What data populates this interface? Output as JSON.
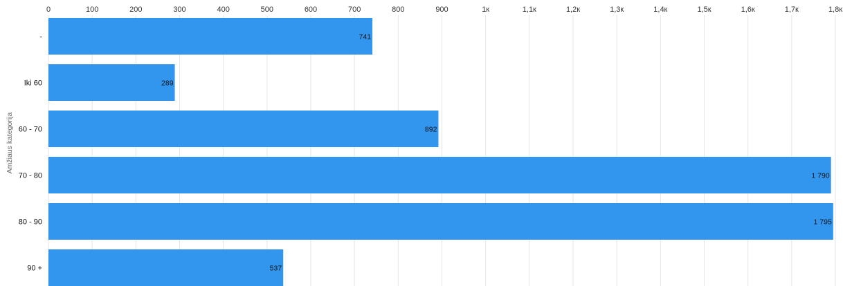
{
  "chart_data": {
    "type": "bar",
    "orientation": "horizontal",
    "ylabel": "Amžiaus kategorija",
    "categories": [
      "-",
      "Iki 60",
      "60 - 70",
      "70 - 80",
      "80 - 90",
      "90 +"
    ],
    "values": [
      741,
      289,
      892,
      1790,
      1795,
      537
    ],
    "value_labels": [
      "741",
      "289",
      "892",
      "1 790",
      "1 795",
      "537"
    ],
    "xlim": [
      0,
      1800
    ],
    "x_ticks": [
      0,
      100,
      200,
      300,
      400,
      500,
      600,
      700,
      800,
      900,
      1000,
      1100,
      1200,
      1300,
      1400,
      1500,
      1600,
      1700,
      1800
    ],
    "x_tick_labels": [
      "0",
      "100",
      "200",
      "300",
      "400",
      "500",
      "600",
      "700",
      "800",
      "900",
      "1к",
      "1,1к",
      "1,2к",
      "1,3к",
      "1,4к",
      "1,5к",
      "1,6к",
      "1,7к",
      "1,8к"
    ],
    "x_axis_position": "top",
    "grid": true,
    "bar_color": "#3396EE",
    "grid_color": "#E6E6E6"
  }
}
